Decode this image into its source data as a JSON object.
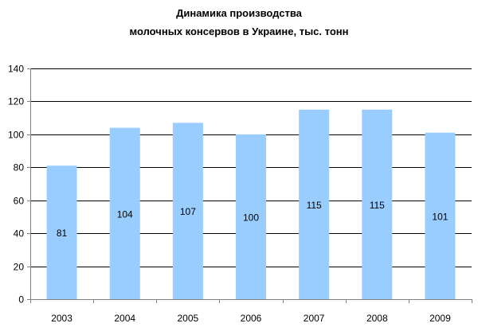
{
  "chart_data": {
    "type": "bar",
    "title_lines": [
      "Динамика производства",
      "молочных консервов в Украине, тыс. тонн"
    ],
    "categories": [
      "2003",
      "2004",
      "2005",
      "2006",
      "2007",
      "2008",
      "2009"
    ],
    "values": [
      81,
      104,
      107,
      100,
      115,
      115,
      101
    ],
    "data_labels": [
      "81",
      "104",
      "107",
      "100",
      "115",
      "115",
      "101"
    ],
    "ylim": [
      0,
      140
    ],
    "y_ticks": [
      0,
      20,
      40,
      60,
      80,
      100,
      120,
      140
    ],
    "y_tick_labels": [
      "0",
      "20",
      "40",
      "60",
      "80",
      "100",
      "120",
      "140"
    ],
    "xlabel": "",
    "ylabel": "",
    "grid": true,
    "legend": "none",
    "colors": {
      "bar": "#99CCFF",
      "grid": "#000000",
      "axis": "#808080",
      "text": "#000000"
    }
  }
}
